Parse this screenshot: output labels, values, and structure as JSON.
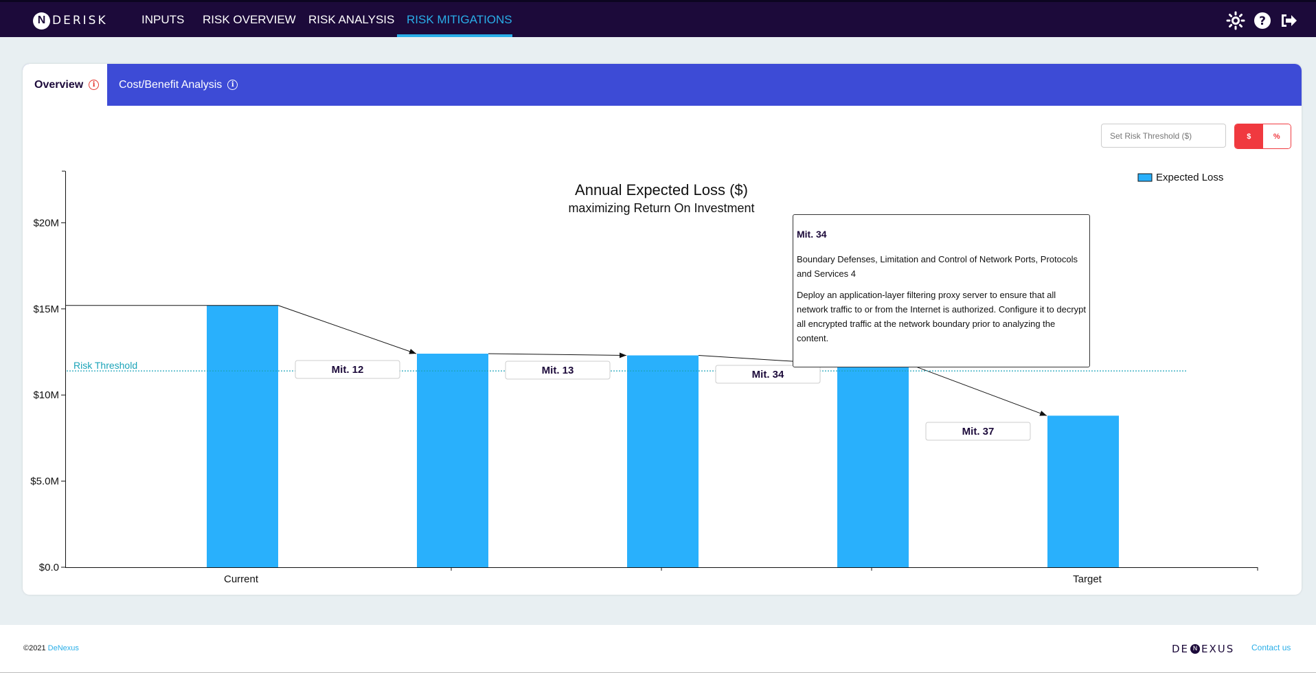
{
  "nav": {
    "logo_mark": "N",
    "logo_text": "DERISK",
    "items": [
      "INPUTS",
      "RISK OVERVIEW",
      "RISK ANALYSIS",
      "RISK MITIGATIONS"
    ],
    "active_item": "RISK MITIGATIONS",
    "icons": [
      "settings-sun-icon",
      "help-icon",
      "logout-icon"
    ]
  },
  "tabs": [
    {
      "label": "Overview",
      "active": true
    },
    {
      "label": "Cost/Benefit Analysis",
      "active": false
    }
  ],
  "threshold": {
    "placeholder": "Set Risk Threshold ($)",
    "unit_options": [
      "$",
      "%"
    ],
    "selected_unit": "$"
  },
  "chart_data": {
    "type": "bar",
    "title": "Annual Expected Loss ($)",
    "subtitle": "maximizing Return On Investment",
    "categories": [
      "Current",
      "",
      "",
      "",
      "Target"
    ],
    "series": [
      {
        "name": "Expected Loss",
        "values": [
          15.2,
          12.4,
          12.3,
          11.8,
          8.8
        ]
      }
    ],
    "y_unit": "M",
    "ylim": [
      0,
      23
    ],
    "y_ticks": [
      "$0.0",
      "$5.0M",
      "$10M",
      "$15M",
      "$20M"
    ],
    "y_tick_values": [
      0,
      5,
      10,
      15,
      20
    ],
    "risk_threshold": {
      "label": "Risk Threshold",
      "value": 11.4
    },
    "mitigation_labels": [
      "Mit. 12",
      "Mit. 13",
      "Mit. 34",
      "Mit. 37"
    ],
    "legend": "top-right",
    "grid": false
  },
  "tooltip": {
    "title": "Mit. 34",
    "name": "Boundary Defenses, Limitation and Control of Network Ports, Protocols and Services 4",
    "description": "Deploy an application-layer filtering proxy server to ensure that all network traffic to or from the Internet is authorized. Configure it to decrypt all encrypted traffic at the network boundary prior to analyzing the content."
  },
  "footer": {
    "copyright_prefix": "©2021",
    "copyright_link": "DeNexus",
    "logo_left": "DE",
    "logo_mark": "N",
    "logo_right": "EXUS",
    "contact": "Contact us"
  },
  "colors": {
    "nav_bg": "#1c0a3a",
    "accent": "#29aee8",
    "tab_bar": "#3d4bd6",
    "bar": "#29b0fc",
    "threshold": "#1aa3b8",
    "toggle": "#f0393f"
  }
}
